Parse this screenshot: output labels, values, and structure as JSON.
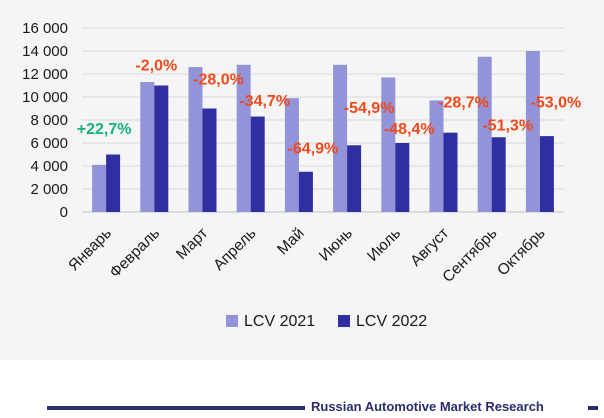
{
  "chart_data": {
    "type": "bar",
    "categories": [
      "Январь",
      "Февраль",
      "Март",
      "Апрель",
      "Май",
      "Июнь",
      "Июль",
      "Август",
      "Сентябрь",
      "Октябрь"
    ],
    "series": [
      {
        "name": "LCV 2021",
        "color": "#9393d9",
        "values": [
          4100,
          11300,
          12600,
          12800,
          9900,
          12800,
          11700,
          9700,
          13500,
          14000
        ]
      },
      {
        "name": "LCV 2022",
        "color": "#2f2fa2",
        "values": [
          5000,
          11000,
          9000,
          8300,
          3500,
          5800,
          6000,
          6900,
          6500,
          6600
        ]
      }
    ],
    "annotations": [
      {
        "category": "Январь",
        "text": "+22,7%",
        "color": "#14b37a"
      },
      {
        "category": "Февраль",
        "text": "-2,0%",
        "color": "#f04a1a"
      },
      {
        "category": "Март",
        "text": "-28,0%",
        "color": "#f04a1a"
      },
      {
        "category": "Апрель",
        "text": "-34,7%",
        "color": "#f04a1a"
      },
      {
        "category": "Май",
        "text": "-64,9%",
        "color": "#f04a1a"
      },
      {
        "category": "Июнь",
        "text": "-54,9%",
        "color": "#f04a1a"
      },
      {
        "category": "Июль",
        "text": "-48,4%",
        "color": "#f04a1a"
      },
      {
        "category": "Август",
        "text": "-28,7%",
        "color": "#f04a1a"
      },
      {
        "category": "Сентябрь",
        "text": "-51,3%",
        "color": "#f04a1a"
      },
      {
        "category": "Октябрь",
        "text": "-53,0%",
        "color": "#f04a1a"
      }
    ],
    "yticks": [
      "0",
      "2 000",
      "4 000",
      "6 000",
      "8 000",
      "10 000",
      "12 000",
      "14 000",
      "16 000"
    ],
    "ylim": [
      0,
      16000
    ],
    "grid": true,
    "legend_position": "bottom",
    "title": "",
    "xlabel": "",
    "ylabel": ""
  },
  "footer": {
    "source": "Russian Automotive Market Research"
  }
}
